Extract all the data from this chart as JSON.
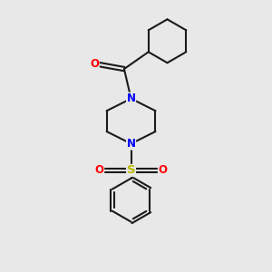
{
  "bg_color": "#e8e8e8",
  "bond_color": "#1a1a1a",
  "N_color": "#0000ff",
  "O_color": "#ff0000",
  "S_color": "#bbbb00",
  "line_width": 1.5,
  "dbo": 0.018,
  "font_size_atom": 8.5,
  "xlim": [
    -1.1,
    1.1
  ],
  "ylim": [
    -1.35,
    1.35
  ]
}
